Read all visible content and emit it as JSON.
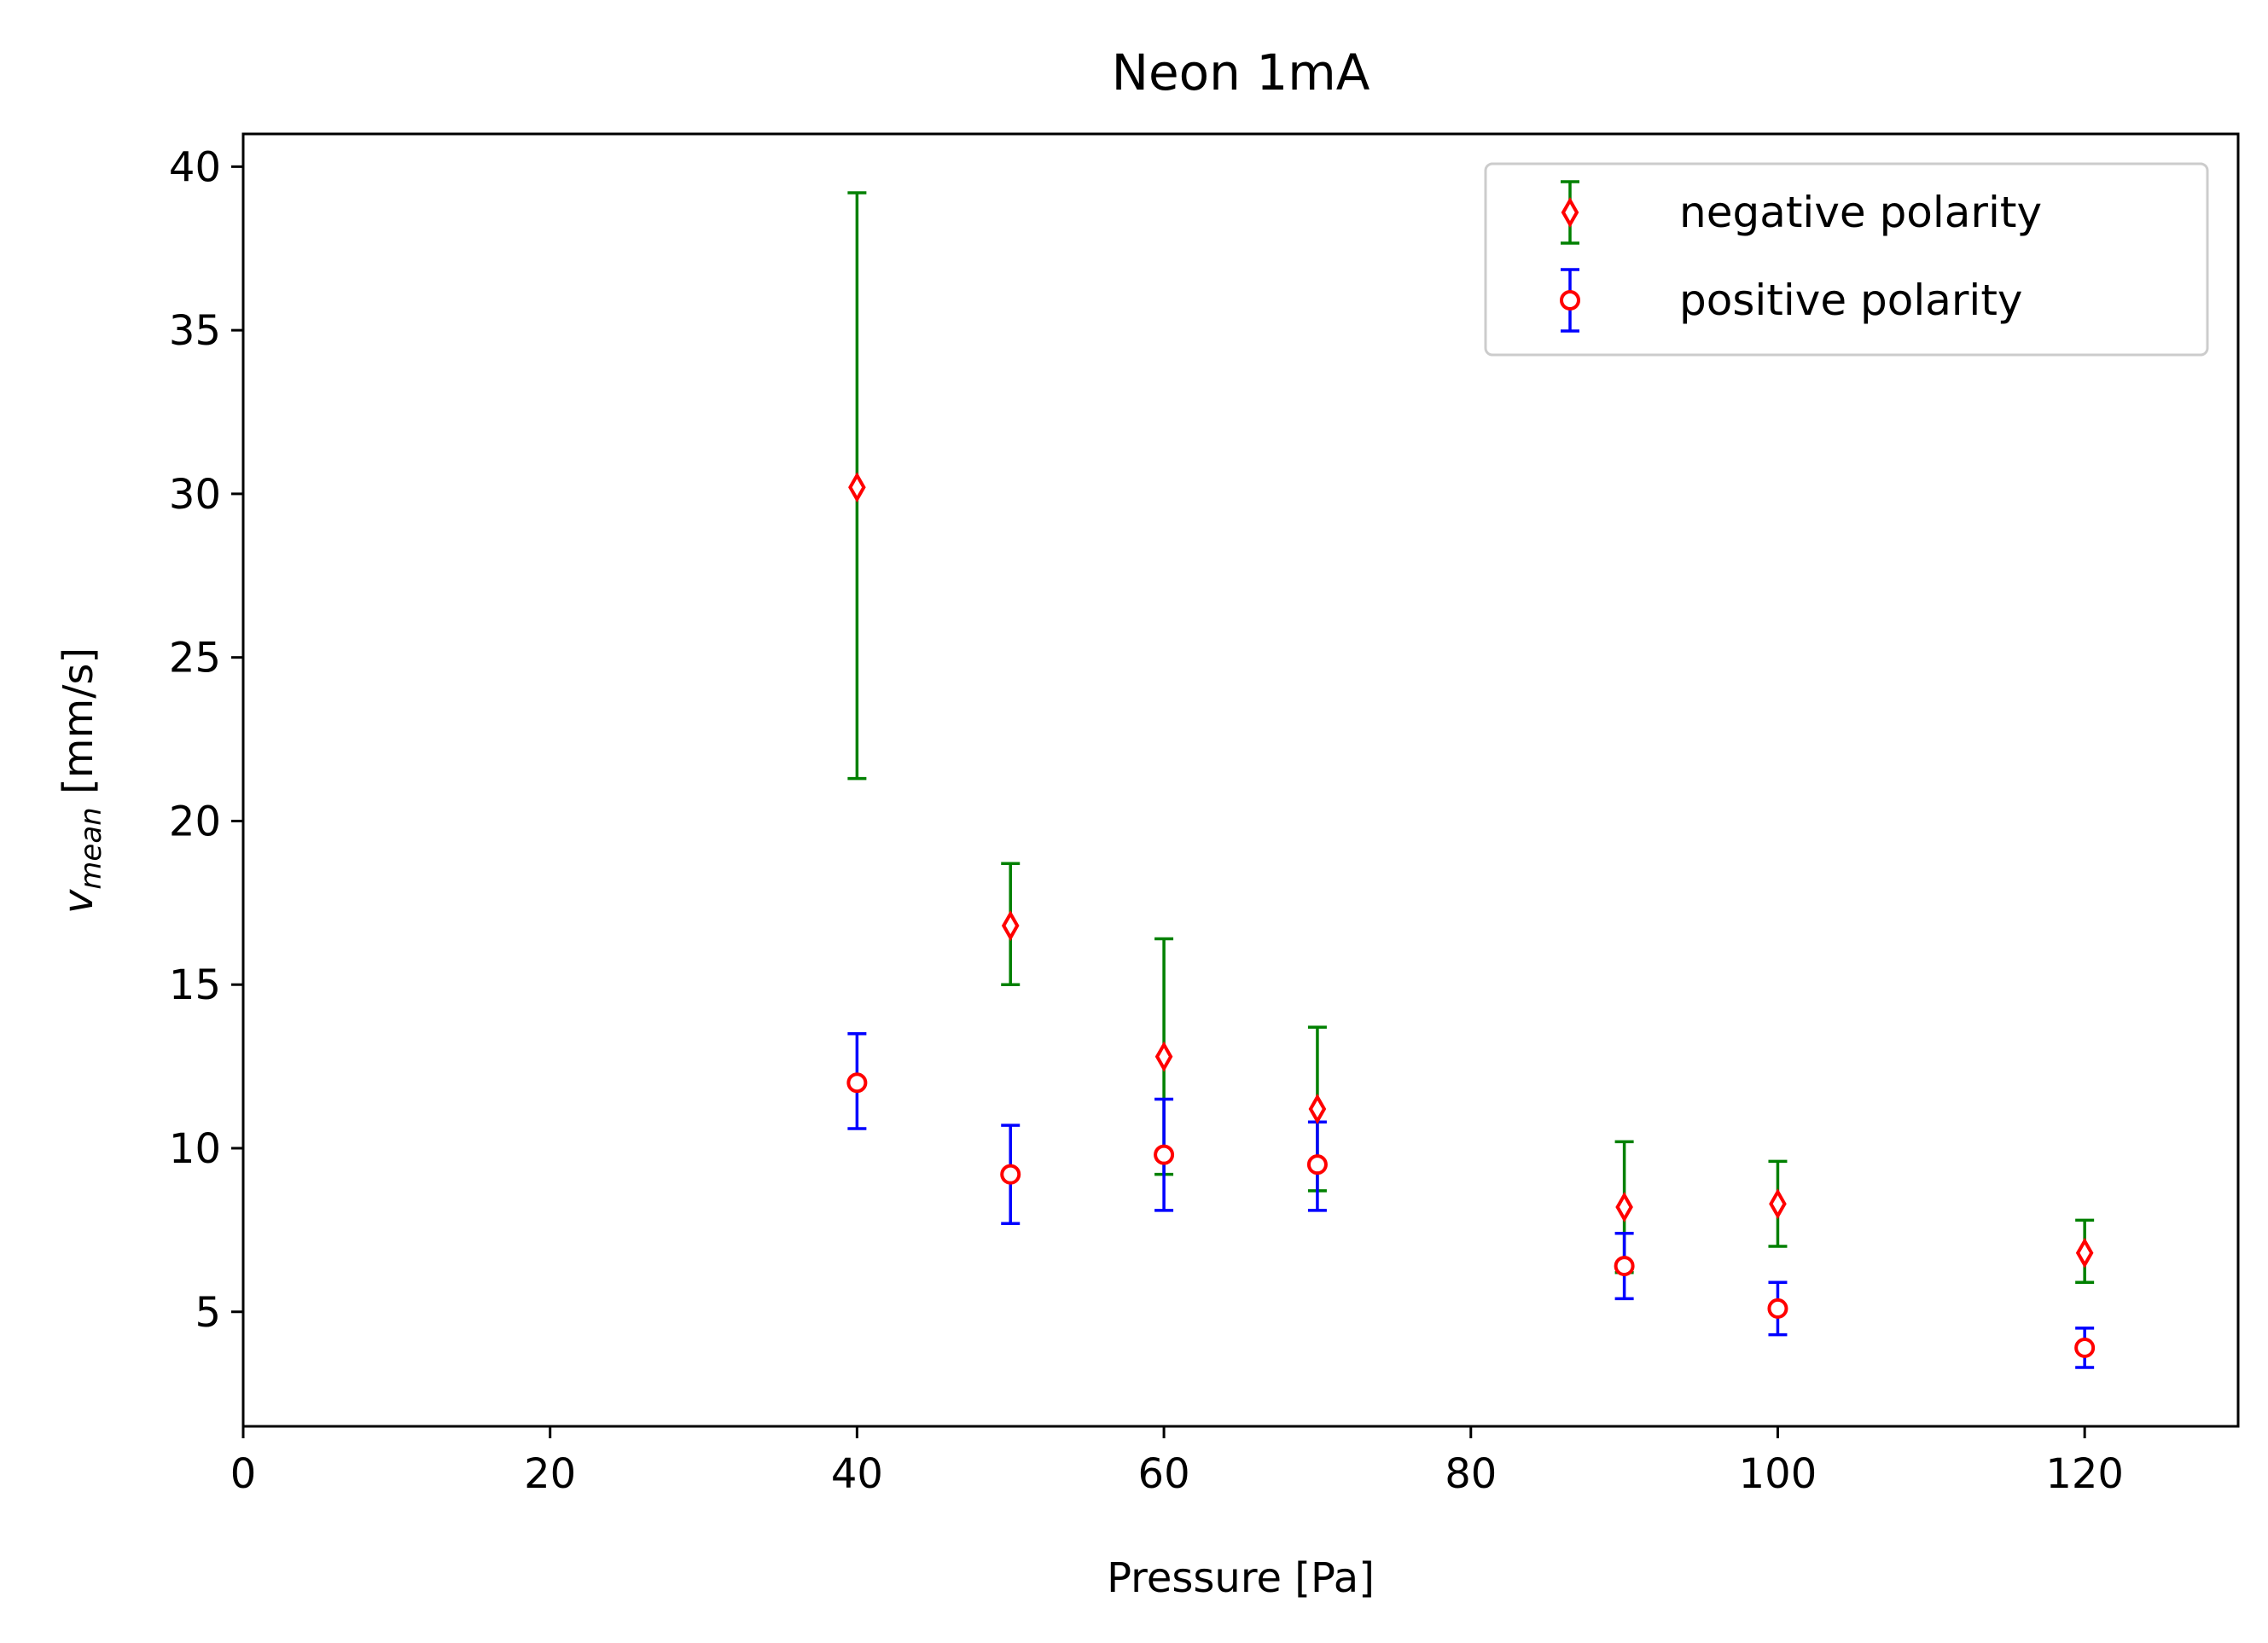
{
  "chart_data": {
    "type": "scatter",
    "title": "Neon 1mA",
    "xlabel": "Pressure [Pa]",
    "ylabel_var": "v",
    "ylabel_sub": "mean",
    "ylabel_unit": " [mm/s]",
    "xlim": [
      0,
      130
    ],
    "ylim": [
      1.5,
      41
    ],
    "xticks": [
      0,
      20,
      40,
      60,
      80,
      100,
      120
    ],
    "yticks": [
      5,
      10,
      15,
      20,
      25,
      30,
      35,
      40
    ],
    "grid": false,
    "legend_position": "top-right",
    "series": [
      {
        "name": "negative polarity",
        "marker": "diamond",
        "marker_color": "#ff0000",
        "error_color": "#008000",
        "x": [
          40,
          50,
          60,
          70,
          90,
          100,
          120
        ],
        "y": [
          30.2,
          16.8,
          12.8,
          11.2,
          8.2,
          8.3,
          6.8
        ],
        "yerr_low": [
          21.3,
          15.0,
          9.2,
          8.7,
          6.2,
          7.0,
          5.9
        ],
        "yerr_high": [
          39.2,
          18.7,
          16.4,
          13.7,
          10.2,
          9.6,
          7.8
        ]
      },
      {
        "name": "positive polarity",
        "marker": "circle",
        "marker_color": "#ff0000",
        "error_color": "#0000ff",
        "x": [
          40,
          50,
          60,
          70,
          90,
          100,
          120
        ],
        "y": [
          12.0,
          9.2,
          9.8,
          9.5,
          6.4,
          5.1,
          3.9
        ],
        "yerr_low": [
          10.6,
          7.7,
          8.1,
          8.1,
          5.4,
          4.3,
          3.3
        ],
        "yerr_high": [
          13.5,
          10.7,
          11.5,
          10.8,
          7.4,
          5.9,
          4.5
        ]
      }
    ]
  }
}
